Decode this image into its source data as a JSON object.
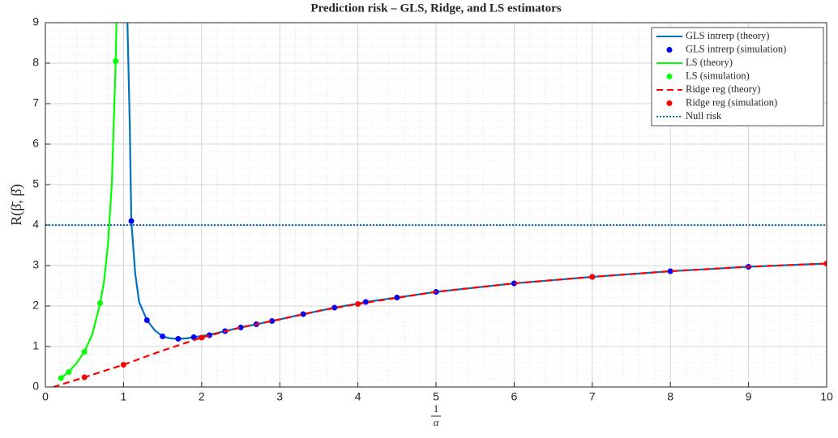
{
  "chart_data": {
    "type": "line",
    "title": "Prediction risk – GLS, Ridge, and LS estimators",
    "ylabel": "R(β̄, β̂)",
    "xlabel_numerator": "1",
    "xlabel_denominator": "α",
    "xlim": [
      0,
      10
    ],
    "ylim": [
      0,
      9
    ],
    "xticks": [
      0,
      1,
      2,
      3,
      4,
      5,
      6,
      7,
      8,
      9,
      10
    ],
    "yticks": [
      0,
      1,
      2,
      3,
      4,
      5,
      6,
      7,
      8,
      9
    ],
    "grid": true,
    "minor_grid": true,
    "legend": "top-right",
    "series": [
      {
        "name": "GLS intrerp (theory)",
        "color": "#0072bd",
        "style": "line",
        "x": [
          1.05,
          1.08,
          1.1,
          1.15,
          1.2,
          1.3,
          1.4,
          1.5,
          1.6,
          1.7,
          1.8,
          1.9,
          2.0,
          2.1,
          2.3,
          2.5,
          2.7,
          2.9,
          3,
          3.3,
          3.7,
          4,
          4.1,
          4.5,
          5,
          6,
          7,
          8,
          9,
          10
        ],
        "values": [
          9,
          6.5,
          4.1,
          2.8,
          2.1,
          1.65,
          1.4,
          1.25,
          1.2,
          1.19,
          1.2,
          1.23,
          1.26,
          1.29,
          1.38,
          1.47,
          1.55,
          1.63,
          1.67,
          1.8,
          1.96,
          2.06,
          2.1,
          2.21,
          2.35,
          2.56,
          2.72,
          2.86,
          2.97,
          3.05
        ]
      },
      {
        "name": "GLS intrerp (simulation)",
        "color": "#0000ff",
        "style": "marker",
        "x": [
          1.1,
          1.3,
          1.5,
          1.7,
          1.9,
          2.1,
          2.3,
          2.5,
          2.7,
          2.9,
          3.3,
          3.7,
          4.1,
          4.5,
          5,
          6,
          7,
          8,
          9,
          10
        ],
        "values": [
          4.1,
          1.65,
          1.25,
          1.19,
          1.23,
          1.28,
          1.38,
          1.47,
          1.55,
          1.63,
          1.8,
          1.96,
          2.1,
          2.21,
          2.35,
          2.56,
          2.72,
          2.86,
          2.97,
          3.05
        ]
      },
      {
        "name": "LS (theory)",
        "color": "#00ff00",
        "style": "line",
        "x": [
          0.18,
          0.2,
          0.3,
          0.4,
          0.5,
          0.6,
          0.7,
          0.75,
          0.8,
          0.85,
          0.9,
          0.91
        ],
        "values": [
          0.19,
          0.22,
          0.38,
          0.59,
          0.87,
          1.3,
          2.06,
          2.6,
          3.5,
          5.0,
          8.05,
          9
        ]
      },
      {
        "name": "LS (simulation)",
        "color": "#00ff00",
        "style": "marker",
        "x": [
          0.2,
          0.3,
          0.5,
          0.7,
          0.9
        ],
        "values": [
          0.22,
          0.37,
          0.87,
          2.07,
          8.05
        ]
      },
      {
        "name": "Ridge reg (theory)",
        "color": "#ff0000",
        "style": "dashed",
        "x": [
          0.1,
          0.5,
          1,
          1.5,
          2,
          2.5,
          3,
          3.5,
          4,
          5,
          6,
          7,
          8,
          9,
          10
        ],
        "values": [
          0,
          0.24,
          0.55,
          0.9,
          1.22,
          1.47,
          1.67,
          1.88,
          2.05,
          2.35,
          2.56,
          2.72,
          2.86,
          2.97,
          3.05
        ]
      },
      {
        "name": "Ridge reg (simulation)",
        "color": "#ff0000",
        "style": "marker",
        "x": [
          0.5,
          1,
          2,
          4,
          7,
          10
        ],
        "values": [
          0.24,
          0.55,
          1.22,
          2.05,
          2.72,
          3.05
        ]
      },
      {
        "name": "Null risk",
        "color": "#0072bd",
        "style": "dotted",
        "y": 4
      }
    ]
  }
}
